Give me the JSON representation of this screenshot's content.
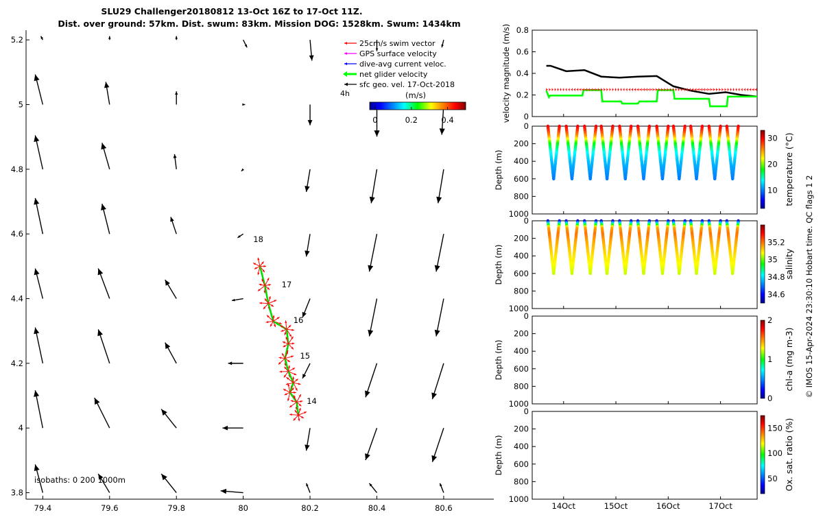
{
  "title": {
    "line1": "SLU29 Challenger20180812 13-Oct 16Z to 17-Oct 11Z.",
    "line2": "Dist. over ground: 57km. Dist. swum: 83km. Mission DOG: 1528km. Swum: 1434km"
  },
  "colors": {
    "swim": "#ff0000",
    "gps": "#ff00ff",
    "current": "#0000ff",
    "net": "#00ff00",
    "sfc": "#000000"
  },
  "chart_data": [
    {
      "type": "quiver-map",
      "xlim": [
        79.35,
        80.75
      ],
      "ylim": [
        3.78,
        5.23
      ],
      "xticks": [
        79.4,
        79.6,
        79.8,
        80,
        80.2,
        80.4,
        80.6
      ],
      "xtick_labels": [
        "79.4",
        "79.6",
        "79.8",
        "80",
        "80.2",
        "80.4",
        "80.6"
      ],
      "yticks": [
        3.8,
        4,
        4.2,
        4.4,
        4.6,
        4.8,
        5,
        5.2
      ],
      "ytick_labels": [
        "3.8",
        "4",
        "4.2",
        "4.4",
        "4.6",
        "4.8",
        "5",
        "5.2"
      ],
      "legend": [
        "25cm/s swim vector",
        "GPS surface velocity",
        "dive-avg current veloc.",
        "net glider velocity",
        "sfc geo. vel. 17-Oct-2018"
      ],
      "time_scale_label": "4h",
      "colorbar": {
        "label": "(m/s)",
        "ticks": [
          "0",
          "0.2",
          "0.4"
        ],
        "range": [
          -0.03,
          0.5
        ]
      },
      "isobaths_label": "isobaths: 0   200  1000m",
      "day_labels": [
        {
          "text": "18",
          "lon": 80.03,
          "lat": 4.575
        },
        {
          "text": "17",
          "lon": 80.115,
          "lat": 4.435
        },
        {
          "text": "16",
          "lon": 80.15,
          "lat": 4.325
        },
        {
          "text": "15",
          "lon": 80.17,
          "lat": 4.215
        },
        {
          "text": "14",
          "lon": 80.19,
          "lat": 4.075
        }
      ],
      "glider_track": [
        [
          80.05,
          4.5
        ],
        [
          80.065,
          4.44
        ],
        [
          80.075,
          4.385
        ],
        [
          80.09,
          4.33
        ],
        [
          80.13,
          4.305
        ],
        [
          80.135,
          4.26
        ],
        [
          80.125,
          4.215
        ],
        [
          80.135,
          4.175
        ],
        [
          80.15,
          4.14
        ],
        [
          80.14,
          4.11
        ],
        [
          80.16,
          4.08
        ],
        [
          80.165,
          4.04
        ]
      ],
      "sfc_vectors": [
        {
          "lon": 79.4,
          "lat": 3.8,
          "u": -0.02,
          "v": 0.075
        },
        {
          "lon": 79.6,
          "lat": 3.8,
          "u": -0.03,
          "v": 0.05
        },
        {
          "lon": 79.8,
          "lat": 3.8,
          "u": -0.04,
          "v": 0.05
        },
        {
          "lon": 80,
          "lat": 3.8,
          "u": -0.06,
          "v": 0.005
        },
        {
          "lon": 80.2,
          "lat": 3.8,
          "u": -0.01,
          "v": 0.025
        },
        {
          "lon": 80.4,
          "lat": 3.8,
          "u": -0.02,
          "v": 0.025
        },
        {
          "lon": 80.6,
          "lat": 3.8,
          "u": -0.01,
          "v": 0.025
        },
        {
          "lon": 79.4,
          "lat": 4,
          "u": -0.02,
          "v": 0.1
        },
        {
          "lon": 79.6,
          "lat": 4,
          "u": -0.04,
          "v": 0.08
        },
        {
          "lon": 79.8,
          "lat": 4,
          "u": -0.04,
          "v": 0.05
        },
        {
          "lon": 80,
          "lat": 4,
          "u": -0.055,
          "v": 0.0
        },
        {
          "lon": 80.2,
          "lat": 4,
          "u": -0.01,
          "v": -0.06
        },
        {
          "lon": 80.4,
          "lat": 4,
          "u": -0.03,
          "v": -0.085
        },
        {
          "lon": 80.6,
          "lat": 4,
          "u": -0.03,
          "v": -0.09
        },
        {
          "lon": 79.4,
          "lat": 4.2,
          "u": -0.02,
          "v": 0.095
        },
        {
          "lon": 79.6,
          "lat": 4.2,
          "u": -0.03,
          "v": 0.09
        },
        {
          "lon": 79.8,
          "lat": 4.2,
          "u": -0.03,
          "v": 0.055
        },
        {
          "lon": 80,
          "lat": 4.2,
          "u": -0.04,
          "v": 0.0
        },
        {
          "lon": 80.2,
          "lat": 4.2,
          "u": -0.02,
          "v": -0.04
        },
        {
          "lon": 80.4,
          "lat": 4.2,
          "u": -0.03,
          "v": -0.09
        },
        {
          "lon": 80.6,
          "lat": 4.2,
          "u": -0.03,
          "v": -0.095
        },
        {
          "lon": 79.4,
          "lat": 4.4,
          "u": -0.02,
          "v": 0.08
        },
        {
          "lon": 79.6,
          "lat": 4.4,
          "u": -0.03,
          "v": 0.08
        },
        {
          "lon": 79.8,
          "lat": 4.4,
          "u": -0.03,
          "v": 0.05
        },
        {
          "lon": 80,
          "lat": 4.4,
          "u": -0.03,
          "v": -0.005
        },
        {
          "lon": 80.2,
          "lat": 4.4,
          "u": -0.02,
          "v": -0.05
        },
        {
          "lon": 80.4,
          "lat": 4.4,
          "u": -0.02,
          "v": -0.1
        },
        {
          "lon": 80.6,
          "lat": 4.4,
          "u": -0.02,
          "v": -0.1
        },
        {
          "lon": 79.4,
          "lat": 4.6,
          "u": -0.02,
          "v": 0.095
        },
        {
          "lon": 79.6,
          "lat": 4.6,
          "u": -0.02,
          "v": 0.08
        },
        {
          "lon": 79.8,
          "lat": 4.6,
          "u": -0.015,
          "v": 0.045
        },
        {
          "lon": 80,
          "lat": 4.6,
          "u": -0.015,
          "v": -0.01
        },
        {
          "lon": 80.2,
          "lat": 4.6,
          "u": -0.01,
          "v": -0.06
        },
        {
          "lon": 80.4,
          "lat": 4.6,
          "u": -0.02,
          "v": -0.1
        },
        {
          "lon": 80.6,
          "lat": 4.6,
          "u": -0.02,
          "v": -0.1
        },
        {
          "lon": 79.4,
          "lat": 4.8,
          "u": -0.02,
          "v": 0.09
        },
        {
          "lon": 79.6,
          "lat": 4.8,
          "u": -0.02,
          "v": 0.07
        },
        {
          "lon": 79.8,
          "lat": 4.8,
          "u": -0.005,
          "v": 0.04
        },
        {
          "lon": 80,
          "lat": 4.8,
          "u": -0.005,
          "v": -0.005
        },
        {
          "lon": 80.2,
          "lat": 4.8,
          "u": -0.01,
          "v": -0.06
        },
        {
          "lon": 80.4,
          "lat": 4.8,
          "u": -0.015,
          "v": -0.09
        },
        {
          "lon": 80.6,
          "lat": 4.8,
          "u": -0.015,
          "v": -0.09
        },
        {
          "lon": 79.4,
          "lat": 5,
          "u": -0.02,
          "v": 0.08
        },
        {
          "lon": 79.6,
          "lat": 5,
          "u": -0.01,
          "v": 0.06
        },
        {
          "lon": 79.8,
          "lat": 5,
          "u": 0.0,
          "v": 0.035
        },
        {
          "lon": 80,
          "lat": 5,
          "u": 0.005,
          "v": 0.0
        },
        {
          "lon": 80.2,
          "lat": 5,
          "u": 0.0,
          "v": -0.055
        },
        {
          "lon": 80.4,
          "lat": 5,
          "u": 0.0,
          "v": -0.085
        },
        {
          "lon": 80.6,
          "lat": 5,
          "u": -0.005,
          "v": -0.08
        },
        {
          "lon": 79.4,
          "lat": 5.2,
          "u": -0.005,
          "v": 0.01
        },
        {
          "lon": 79.6,
          "lat": 5.2,
          "u": 0.0,
          "v": 0.01
        },
        {
          "lon": 79.8,
          "lat": 5.2,
          "u": 0.0,
          "v": 0.01
        },
        {
          "lon": 80,
          "lat": 5.2,
          "u": 0.01,
          "v": -0.02
        },
        {
          "lon": 80.2,
          "lat": 5.2,
          "u": 0.005,
          "v": -0.055
        },
        {
          "lon": 80.4,
          "lat": 5.2,
          "u": 0.0,
          "v": -0.03
        },
        {
          "lon": 80.6,
          "lat": 5.2,
          "u": -0.005,
          "v": -0.02
        }
      ]
    },
    {
      "type": "line",
      "ylabel": "velocity magnitude (m/s)",
      "ylim": [
        0,
        0.8
      ],
      "yticks": [
        "0",
        "0.2",
        "0.4",
        "0.6",
        "0.8"
      ],
      "xlim_days": [
        13.4,
        17.7
      ],
      "series": [
        {
          "name": "dive-avg current veloc.",
          "color": "#000000",
          "x": [
            13.67,
            13.75,
            14.05,
            14.4,
            14.72,
            15.07,
            15.42,
            15.78,
            16.1,
            16.43,
            16.78,
            17.1,
            17.4,
            17.7
          ],
          "y": [
            0.47,
            0.47,
            0.42,
            0.43,
            0.37,
            0.36,
            0.37,
            0.375,
            0.28,
            0.24,
            0.21,
            0.225,
            0.2,
            0.185
          ]
        },
        {
          "name": "net glider velocity",
          "color": "#00ff00",
          "x": [
            13.67,
            13.72,
            13.74,
            14.36,
            14.38,
            14.72,
            14.74,
            15.1,
            15.12,
            15.42,
            15.45,
            15.78,
            15.8,
            16.1,
            16.12,
            16.78,
            16.8,
            17.12,
            17.14,
            17.7
          ],
          "y": [
            0.24,
            0.18,
            0.195,
            0.195,
            0.245,
            0.245,
            0.14,
            0.14,
            0.12,
            0.12,
            0.14,
            0.14,
            0.245,
            0.245,
            0.165,
            0.165,
            0.095,
            0.095,
            0.185,
            0.185
          ]
        },
        {
          "name": "25cm/s swim vector",
          "color": "#ff0000",
          "x": [
            13.67,
            17.7
          ],
          "y": [
            0.25,
            0.25
          ]
        }
      ]
    },
    {
      "type": "scatter-section",
      "variable": "temperature",
      "ylabel": "Depth (m)",
      "colorbar_label": "temperature (°C)",
      "ylim": [
        1000,
        0
      ],
      "yticks": [
        "0",
        "200",
        "400",
        "600",
        "800",
        "1000"
      ],
      "clim": [
        3,
        33
      ],
      "cticks": [
        "10",
        "20",
        "30"
      ],
      "cmap": "jet",
      "profiles_start_days": [
        13.7,
        14.05,
        14.4,
        14.72,
        15.07,
        15.42,
        15.78,
        16.1,
        16.43,
        16.78,
        17.12
      ],
      "profile_max_depth": 600,
      "profile": {
        "depths": [
          0,
          60,
          120,
          200,
          300,
          400,
          500,
          600
        ],
        "values": [
          30,
          28,
          25,
          18,
          14,
          12,
          11,
          10
        ]
      }
    },
    {
      "type": "scatter-section",
      "variable": "salinity",
      "ylabel": "Depth (m)",
      "colorbar_label": "salinity",
      "ylim": [
        1000,
        0
      ],
      "yticks": [
        "0",
        "200",
        "400",
        "600",
        "800",
        "1000"
      ],
      "clim": [
        34.5,
        35.4
      ],
      "cticks": [
        "34.6",
        "34.8",
        "35",
        "35.2"
      ],
      "cmap": "jet",
      "profiles_start_days": [
        13.7,
        14.05,
        14.4,
        14.72,
        15.07,
        15.42,
        15.78,
        16.1,
        16.43,
        16.78,
        17.12
      ],
      "profile_max_depth": 600,
      "profile": {
        "depths": [
          0,
          40,
          80,
          150,
          250,
          400,
          600
        ],
        "values": [
          34.55,
          34.9,
          35.15,
          35.2,
          35.15,
          35.1,
          35.05
        ]
      }
    },
    {
      "type": "scatter-section",
      "variable": "chl-a",
      "ylabel": "Depth (m)",
      "colorbar_label": "chl-a (mg m-3)",
      "ylim": [
        1000,
        0
      ],
      "yticks": [
        "0",
        "200",
        "400",
        "600",
        "800",
        "1000"
      ],
      "clim": [
        0,
        2
      ],
      "cticks": [
        "0",
        "1",
        "2"
      ],
      "cmap": "jet",
      "profiles_start_days": []
    },
    {
      "type": "scatter-section",
      "variable": "oxygen",
      "ylabel": "Depth (m)",
      "colorbar_label": "Ox. sat. ratio (%)",
      "ylim": [
        1000,
        0
      ],
      "yticks": [
        "0",
        "200",
        "400",
        "600",
        "800",
        "1000"
      ],
      "clim": [
        20,
        175
      ],
      "cticks": [
        "50",
        "100",
        "150"
      ],
      "cmap": "jet",
      "profiles_start_days": []
    }
  ],
  "time_axis": {
    "ticks_days": [
      14,
      15,
      16,
      17
    ],
    "labels": [
      "14Oct",
      "15Oct",
      "16Oct",
      "17Oct"
    ]
  },
  "side_text": "© IMOS 15-Apr-2024 23:30:10 Hobart time. QC flags 1  2"
}
